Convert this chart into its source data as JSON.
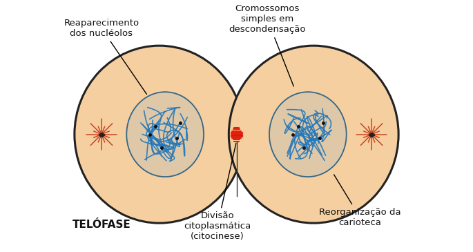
{
  "bg_color": "#ffffff",
  "cell_color": "#f5cfa0",
  "cell_edge_color": "#222222",
  "nucleus_fill": "#e8c89a",
  "nucleus_edge": "#336688",
  "chromosome_color": "#2277bb",
  "aster_color": "#cc4422",
  "spindle_color": "#cc1100",
  "dot_color": "#111111",
  "label_color": "#111111",
  "telofase_label": "TELÓFASE",
  "label1": "Reaparecimento\ndos nucléolos",
  "label2": "Cromossomos\nsimples em\ndescondensação",
  "label3": "Divisão\ncitoplasmática\n(citocinese)",
  "label4": "Reorganização da\ncarioteca",
  "fig_width": 6.85,
  "fig_height": 3.65,
  "dpi": 100
}
